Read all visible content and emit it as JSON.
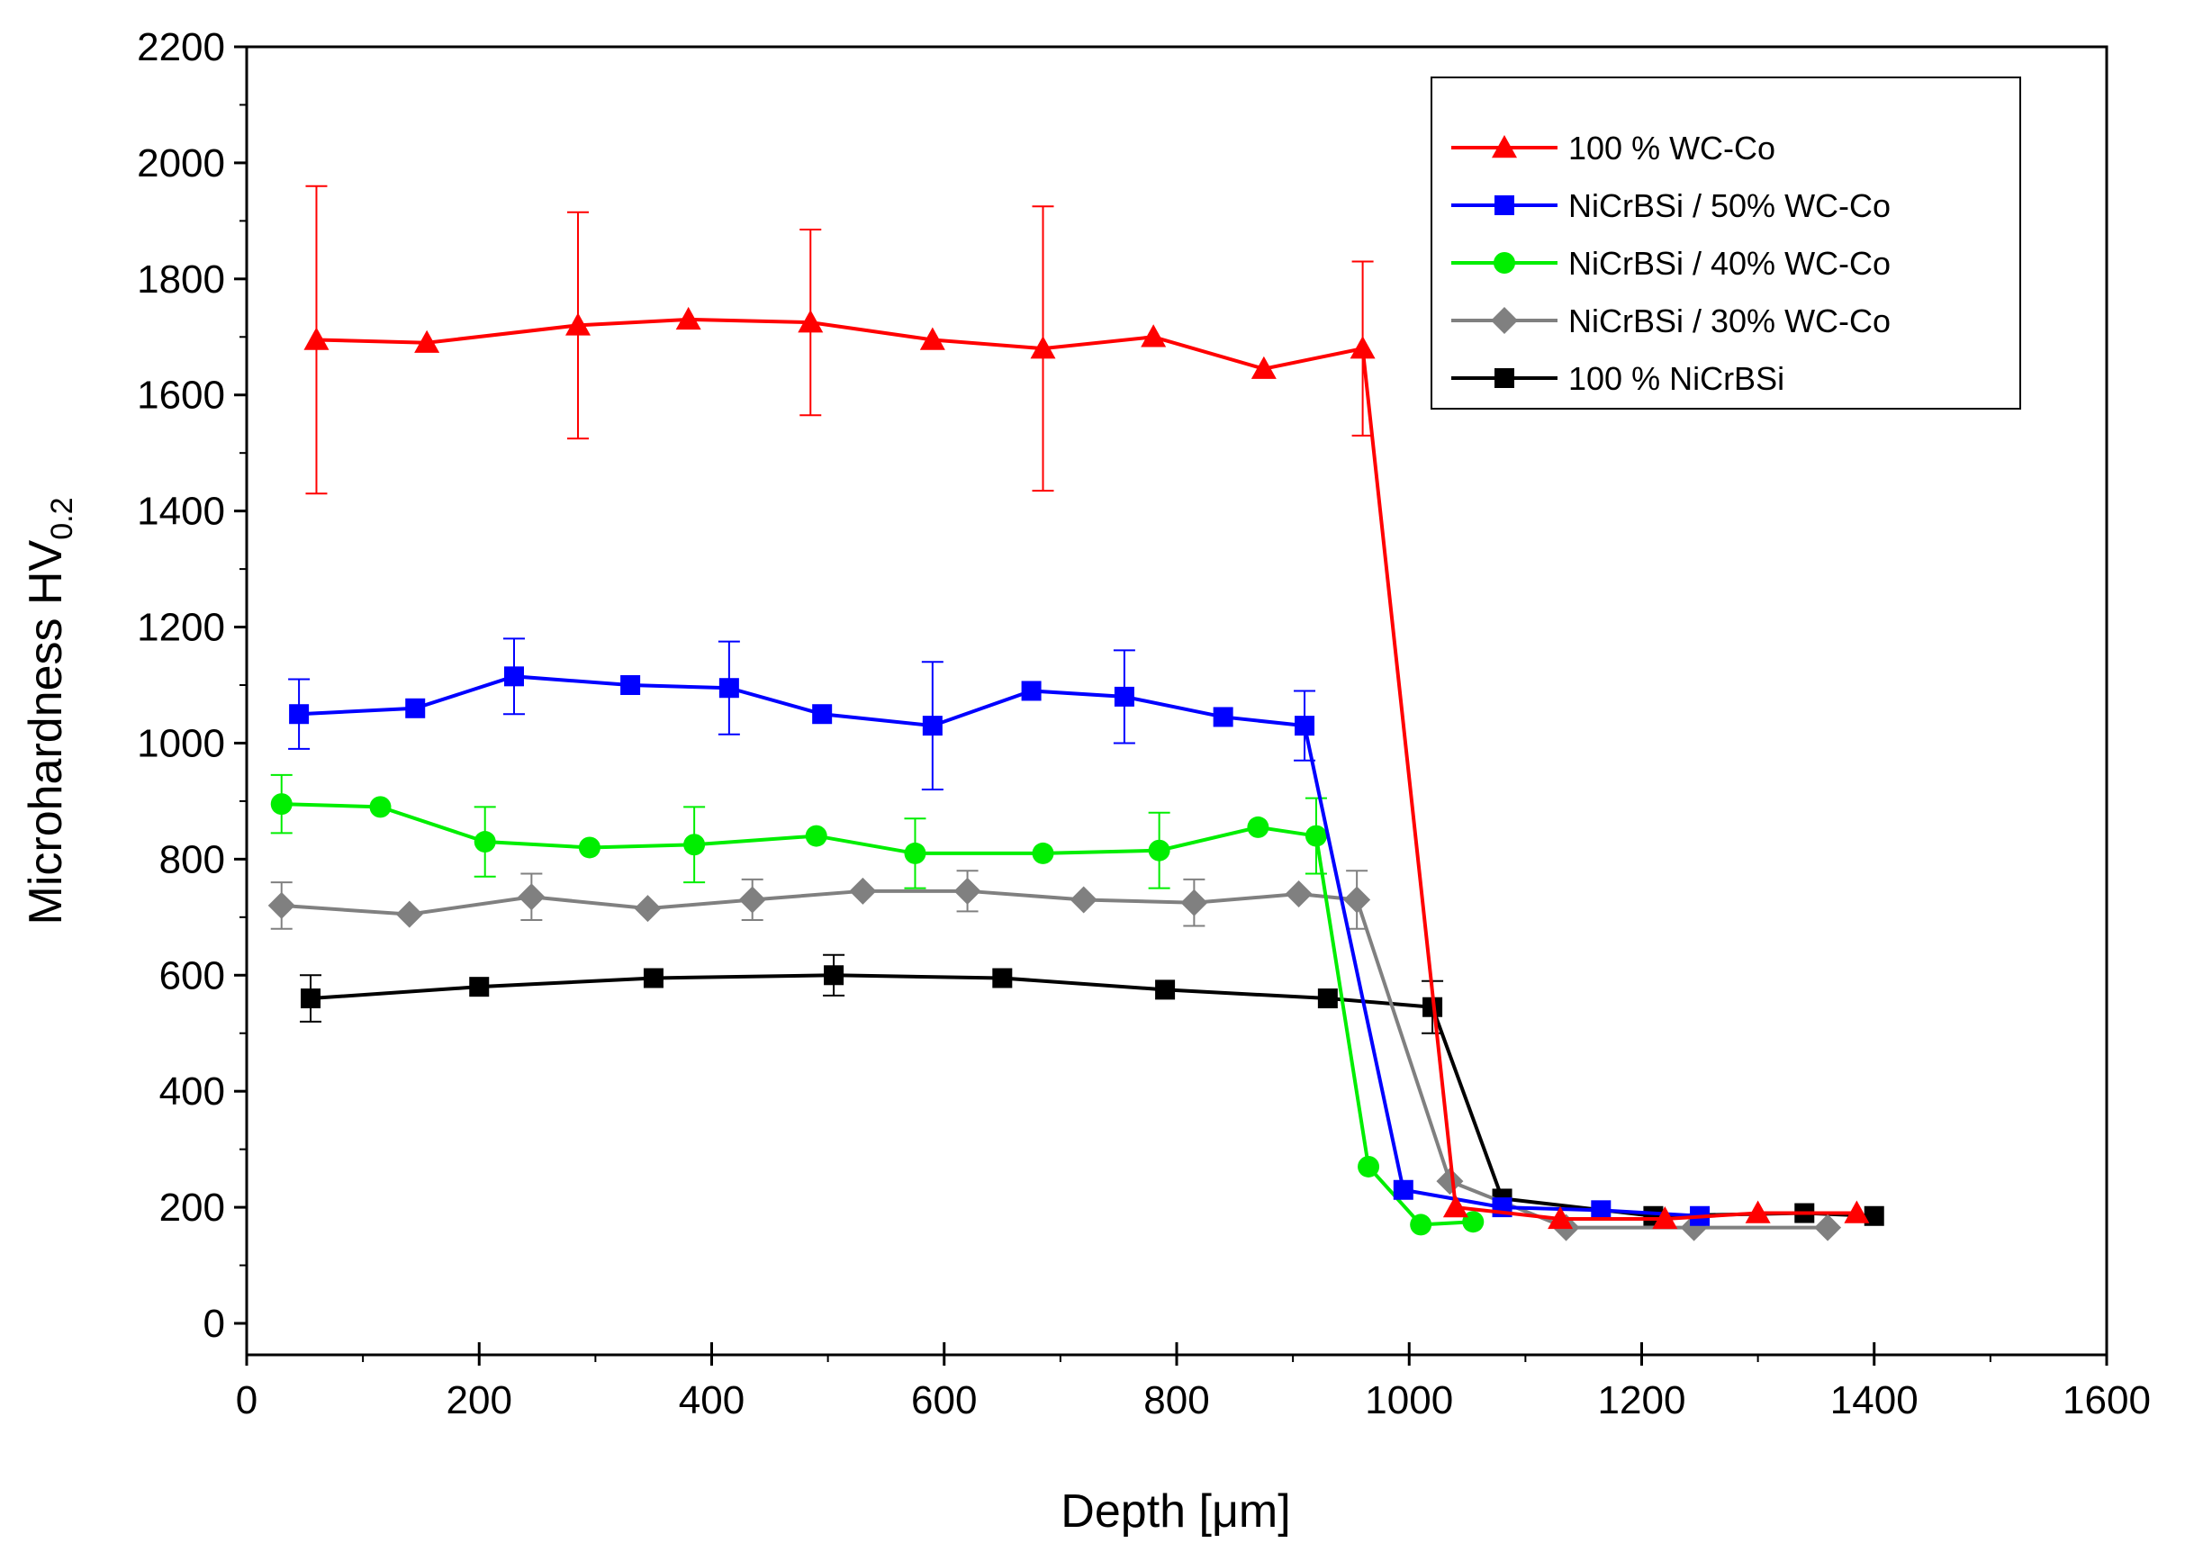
{
  "chart_data": {
    "type": "line",
    "title": "",
    "xlabel": "Depth [μm]",
    "ylabel": "Microhardness HV",
    "ylabel_subscript": "0.2",
    "xlim": [
      0,
      1600
    ],
    "ylim": [
      0,
      2200
    ],
    "xticks": [
      0,
      200,
      400,
      600,
      800,
      1000,
      1200,
      1400,
      1600
    ],
    "yticks": [
      0,
      200,
      400,
      600,
      800,
      1000,
      1200,
      1400,
      1600,
      1800,
      2000,
      2200
    ],
    "grid": false,
    "legend_position": "top-right",
    "series": [
      {
        "name": "100 % WC-Co",
        "color": "#ff0000",
        "marker": "triangle",
        "x": [
          60,
          155,
          285,
          380,
          485,
          590,
          685,
          780,
          875,
          960,
          1040,
          1130,
          1220,
          1300,
          1385
        ],
        "y": [
          1695,
          1690,
          1720,
          1730,
          1725,
          1695,
          1680,
          1700,
          1645,
          1680,
          200,
          180,
          180,
          190,
          190
        ],
        "err": [
          265,
          null,
          195,
          null,
          160,
          null,
          245,
          null,
          null,
          150,
          null,
          null,
          null,
          null,
          null
        ]
      },
      {
        "name": "NiCrBSi / 50% WC-Co",
        "color": "#0000ff",
        "marker": "square",
        "x": [
          45,
          145,
          230,
          330,
          415,
          495,
          590,
          675,
          755,
          840,
          910,
          995,
          1080,
          1165,
          1250
        ],
        "y": [
          1050,
          1060,
          1115,
          1100,
          1095,
          1050,
          1030,
          1090,
          1080,
          1045,
          1030,
          230,
          200,
          195,
          185
        ],
        "err": [
          60,
          null,
          65,
          null,
          80,
          null,
          110,
          null,
          80,
          null,
          60,
          null,
          null,
          null,
          null
        ]
      },
      {
        "name": "NiCrBSi / 40% WC-Co",
        "color": "#00ee00",
        "marker": "circle",
        "x": [
          30,
          115,
          205,
          295,
          385,
          490,
          575,
          685,
          785,
          870,
          920,
          965,
          1010,
          1055
        ],
        "y": [
          895,
          890,
          830,
          820,
          825,
          840,
          810,
          810,
          815,
          855,
          840,
          270,
          170,
          175
        ],
        "err": [
          50,
          null,
          60,
          null,
          65,
          null,
          60,
          null,
          65,
          null,
          65,
          null,
          null,
          null
        ]
      },
      {
        "name": "NiCrBSi / 30% WC-Co",
        "color": "#808080",
        "marker": "diamond",
        "x": [
          30,
          140,
          245,
          345,
          435,
          530,
          620,
          720,
          815,
          905,
          955,
          1035,
          1135,
          1245,
          1360
        ],
        "y": [
          720,
          705,
          735,
          715,
          730,
          745,
          745,
          730,
          725,
          740,
          730,
          245,
          165,
          165,
          165
        ],
        "err": [
          40,
          null,
          40,
          null,
          35,
          null,
          35,
          null,
          40,
          null,
          50,
          null,
          null,
          null,
          null
        ]
      },
      {
        "name": "100 % NiCrBSi",
        "color": "#000000",
        "marker": "square",
        "x": [
          55,
          200,
          350,
          505,
          650,
          790,
          930,
          1020,
          1080,
          1210,
          1340,
          1400
        ],
        "y": [
          560,
          580,
          595,
          600,
          595,
          575,
          560,
          545,
          215,
          185,
          190,
          185
        ],
        "err": [
          40,
          null,
          null,
          35,
          null,
          null,
          null,
          45,
          null,
          null,
          null,
          null
        ]
      }
    ]
  }
}
